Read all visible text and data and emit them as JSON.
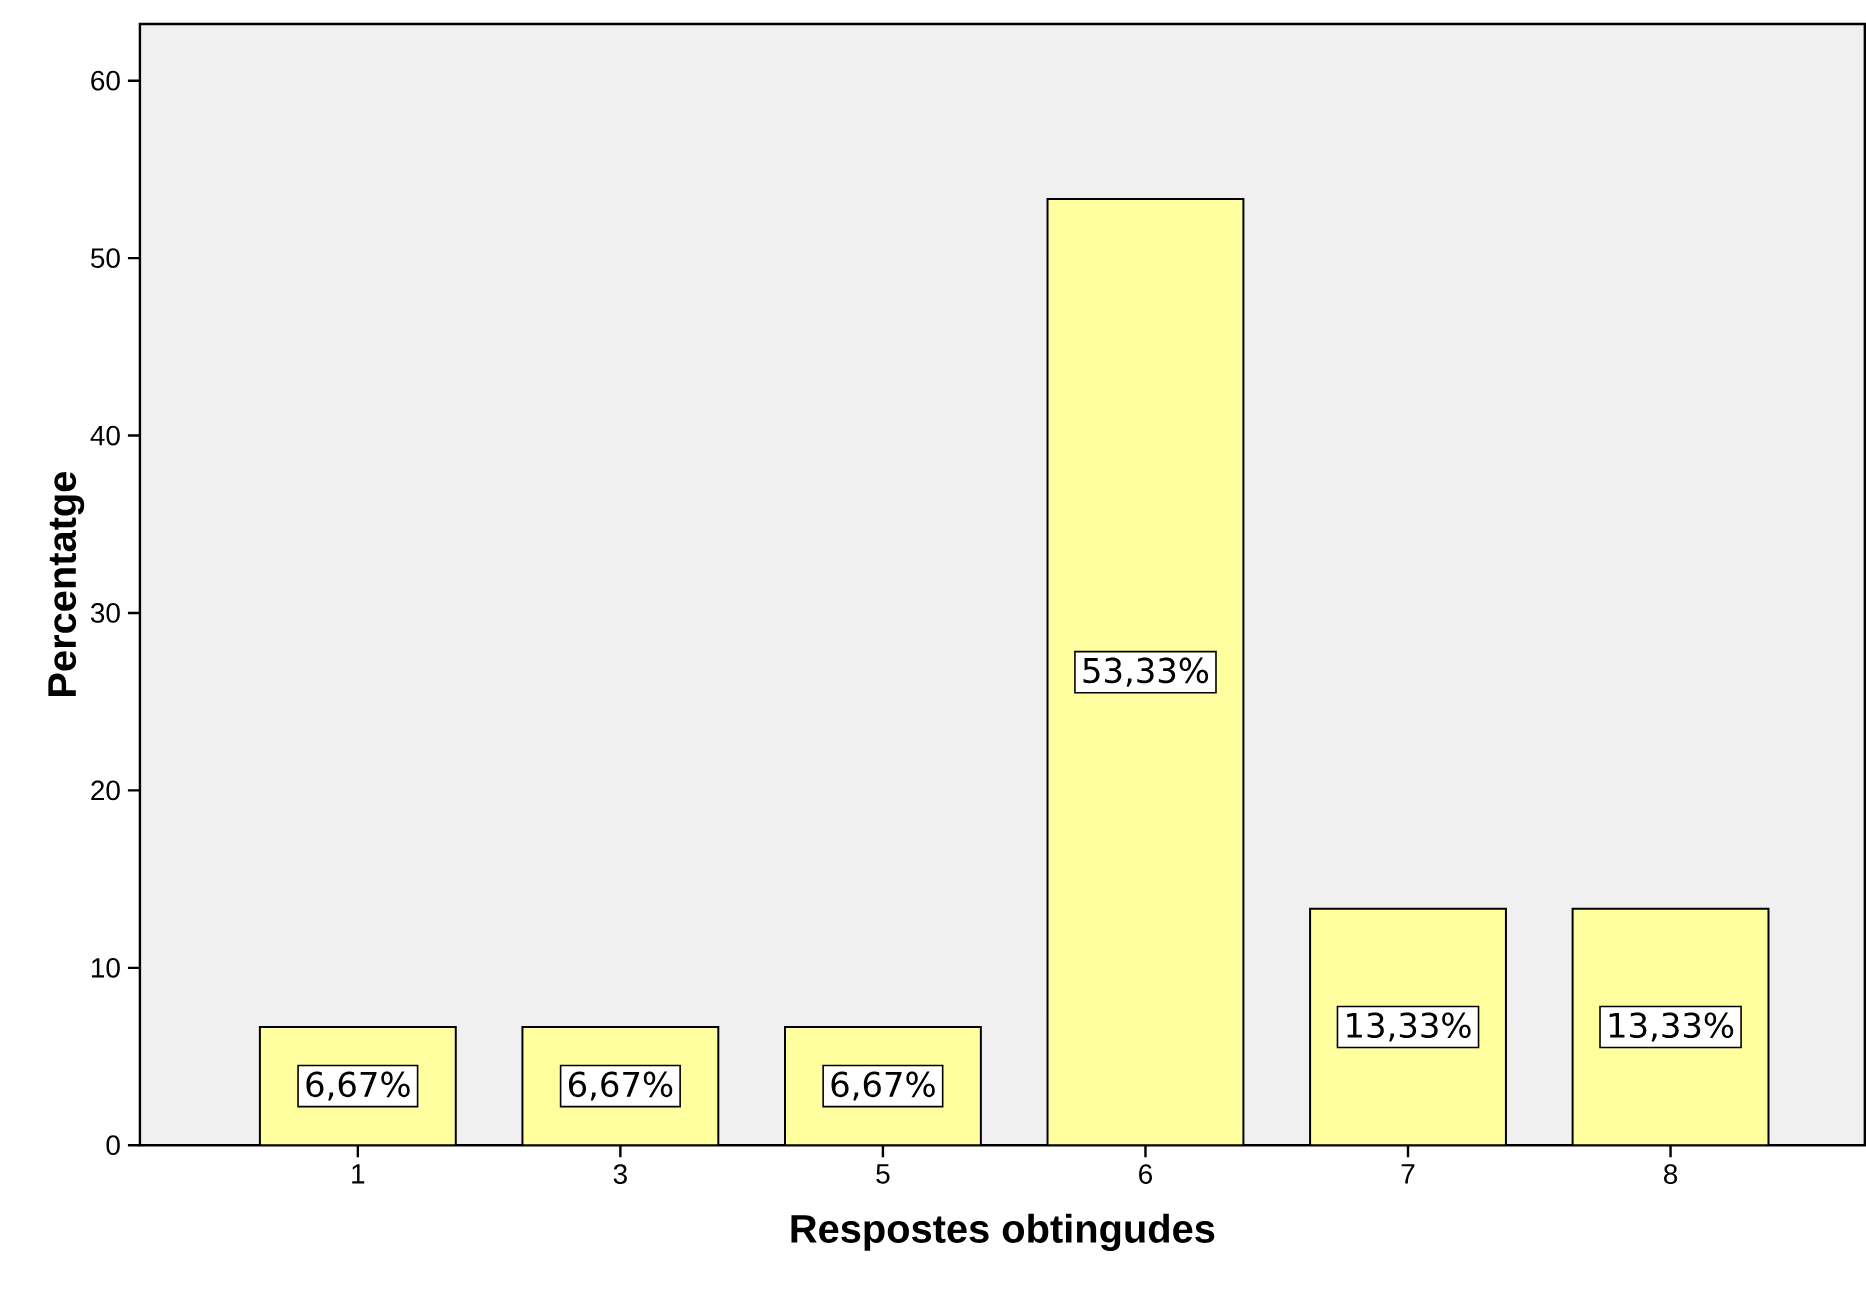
{
  "chart_data": {
    "type": "bar",
    "xlabel": "Respostes obtingudes",
    "ylabel": "Percentatge",
    "categories": [
      "1",
      "3",
      "5",
      "6",
      "7",
      "8"
    ],
    "values": [
      6.67,
      6.67,
      6.67,
      53.33,
      13.33,
      13.33
    ],
    "value_labels": [
      "6,67%",
      "6,67%",
      "6,67%",
      "53,33%",
      "13,33%",
      "13,33%"
    ],
    "color": "#ffffa0",
    "ylim": [
      0,
      63.2
    ],
    "yticks": [
      0,
      10,
      20,
      30,
      40,
      50,
      60
    ],
    "grid": false
  }
}
